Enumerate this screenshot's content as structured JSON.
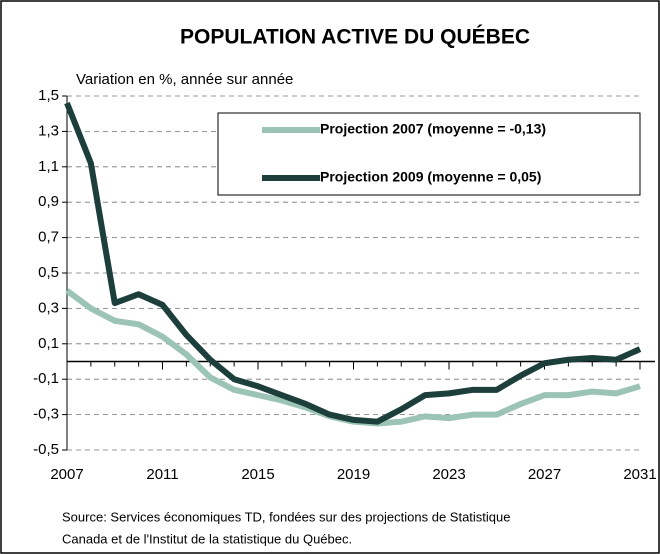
{
  "chart_data": {
    "type": "line",
    "title": "POPULATION ACTIVE DU QUÉBEC",
    "subtitle": "Variation en %, année sur année",
    "x": [
      2007,
      2008,
      2009,
      2010,
      2011,
      2012,
      2013,
      2014,
      2015,
      2016,
      2017,
      2018,
      2019,
      2020,
      2021,
      2022,
      2023,
      2024,
      2025,
      2026,
      2027,
      2028,
      2029,
      2030,
      2031
    ],
    "series": [
      {
        "name": "Projection 2007 (moyenne = -0,13)",
        "color": "#9cc4b6",
        "values": [
          0.4,
          0.3,
          0.23,
          0.21,
          0.14,
          0.04,
          -0.09,
          -0.16,
          -0.19,
          -0.22,
          -0.26,
          -0.31,
          -0.34,
          -0.35,
          -0.34,
          -0.31,
          -0.32,
          -0.3,
          -0.3,
          -0.24,
          -0.19,
          -0.19,
          -0.17,
          -0.18,
          -0.14
        ]
      },
      {
        "name": "Projection 2009  (moyenne = 0,05)",
        "color": "#1d3f3b",
        "values": [
          1.46,
          1.12,
          0.33,
          0.38,
          0.32,
          0.15,
          0.01,
          -0.1,
          -0.14,
          -0.19,
          -0.24,
          -0.3,
          -0.33,
          -0.34,
          -0.27,
          -0.19,
          -0.18,
          -0.16,
          -0.16,
          -0.08,
          -0.01,
          0.01,
          0.02,
          0.01,
          0.07
        ]
      }
    ],
    "xlim": [
      2007,
      2031
    ],
    "xticks": [
      2007,
      2011,
      2015,
      2019,
      2023,
      2027,
      2031
    ],
    "ylim": [
      -0.5,
      1.5
    ],
    "yticks": [
      {
        "value": 1.5,
        "label": "1,5"
      },
      {
        "value": 1.3,
        "label": "1,3"
      },
      {
        "value": 1.1,
        "label": "1,1"
      },
      {
        "value": 0.9,
        "label": "0,9"
      },
      {
        "value": 0.7,
        "label": "0,7"
      },
      {
        "value": 0.5,
        "label": "0,5"
      },
      {
        "value": 0.3,
        "label": "0,3"
      },
      {
        "value": 0.1,
        "label": "0,1"
      },
      {
        "value": -0.1,
        "label": "-0,1"
      },
      {
        "value": -0.3,
        "label": "-0,3"
      },
      {
        "value": -0.5,
        "label": "-0,5"
      }
    ],
    "grid": true,
    "legend_position": "top-right",
    "source_lines": [
      "Source: Services économiques TD, fondées sur des projections de Statistique",
      "Canada et de l'Institut de la statistique du Québec."
    ]
  }
}
